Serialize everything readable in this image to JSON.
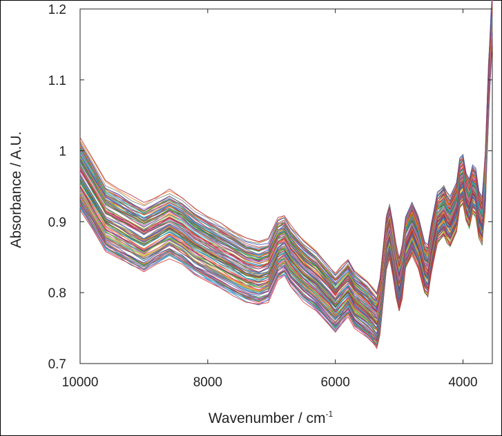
{
  "chart_data": {
    "type": "line",
    "xlabel": "Wavenumber / cm",
    "xlabel_superscript": "-1",
    "ylabel": "Absorbance / A.U.",
    "x_reversed": true,
    "xlim": [
      10000,
      3540
    ],
    "ylim": [
      0.7,
      1.2
    ],
    "x_ticks": [
      10000,
      8000,
      6000,
      4000
    ],
    "x_tick_labels": [
      "10000",
      "8000",
      "6000",
      "4000"
    ],
    "y_ticks": [
      0.7,
      0.8,
      0.9,
      1.0,
      1.1,
      1.2
    ],
    "y_tick_labels": [
      "0.7",
      "0.8",
      "0.9",
      "1",
      "1.1",
      "1.2"
    ],
    "grid": false,
    "legend": "none",
    "n_series": 120,
    "series_palette": [
      "#1f77b4",
      "#d62728",
      "#2ca02c",
      "#9467bd",
      "#17becf",
      "#bcbd22",
      "#e377c2",
      "#8c564b",
      "#ff7f0e",
      "#7f7f7f",
      "#3355aa",
      "#aa3355"
    ],
    "x": [
      10000,
      9800,
      9600,
      9400,
      9200,
      9000,
      8800,
      8600,
      8400,
      8200,
      8000,
      7800,
      7600,
      7400,
      7200,
      7050,
      6900,
      6800,
      6700,
      6500,
      6300,
      6100,
      6000,
      5900,
      5800,
      5700,
      5500,
      5400,
      5350,
      5300,
      5200,
      5150,
      5100,
      5050,
      5000,
      4950,
      4900,
      4800,
      4700,
      4600,
      4550,
      4500,
      4400,
      4300,
      4250,
      4200,
      4100,
      4050,
      4000,
      3950,
      3900,
      3850,
      3800,
      3750,
      3700,
      3650,
      3600,
      3560,
      3540
    ],
    "mean_spectrum": [
      0.965,
      0.935,
      0.905,
      0.895,
      0.885,
      0.875,
      0.885,
      0.895,
      0.885,
      0.87,
      0.86,
      0.85,
      0.84,
      0.83,
      0.825,
      0.83,
      0.86,
      0.865,
      0.85,
      0.83,
      0.815,
      0.795,
      0.785,
      0.795,
      0.805,
      0.79,
      0.775,
      0.765,
      0.76,
      0.78,
      0.87,
      0.885,
      0.86,
      0.83,
      0.81,
      0.83,
      0.87,
      0.89,
      0.87,
      0.835,
      0.83,
      0.86,
      0.905,
      0.915,
      0.905,
      0.9,
      0.92,
      0.955,
      0.96,
      0.935,
      0.925,
      0.945,
      0.94,
      0.91,
      0.9,
      0.96,
      1.08,
      1.16,
      1.19
    ],
    "offset_range": [
      -0.045,
      0.045
    ]
  }
}
